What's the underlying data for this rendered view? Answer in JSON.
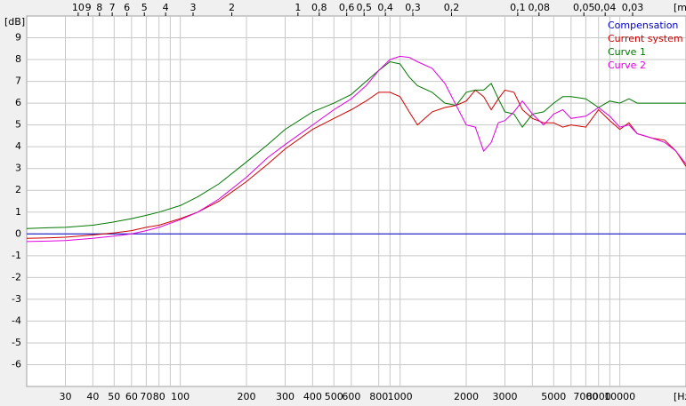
{
  "chart_data": {
    "type": "line",
    "x_label": "[Hz",
    "y_label": "[dB]",
    "x2_label": "[m",
    "x_scale": "log",
    "grid": true,
    "legend": "top-right",
    "xlim": [
      20,
      20000
    ],
    "ylim": [
      -7,
      10
    ],
    "xticks": [
      30,
      40,
      50,
      60,
      70,
      80,
      100,
      200,
      300,
      400,
      500,
      600,
      800,
      1000,
      2000,
      3000,
      5000,
      7000,
      8000,
      10000
    ],
    "xminor": [
      90,
      900,
      4000,
      6000,
      9000
    ],
    "yticks": [
      -6,
      -5,
      -4,
      -3,
      -2,
      -1,
      0,
      1,
      2,
      3,
      4,
      5,
      6,
      7,
      8,
      9
    ],
    "x2ticks": [
      10,
      9,
      8,
      7,
      6,
      5,
      4,
      3,
      2,
      1,
      {
        "value": 0.8,
        "label": "0,8"
      },
      {
        "value": 0.6,
        "label": "0,6"
      },
      {
        "value": 0.5,
        "label": "0,5"
      },
      {
        "value": 0.4,
        "label": "0,4"
      },
      {
        "value": 0.3,
        "label": "0,3"
      },
      {
        "value": 0.2,
        "label": "0,2"
      },
      {
        "value": 0.1,
        "label": "0,1"
      },
      {
        "value": 0.08,
        "label": "0,08"
      },
      {
        "value": 0.05,
        "label": "0,05"
      },
      {
        "value": 0.04,
        "label": "0,04"
      },
      {
        "value": 0.03,
        "label": "0,03"
      }
    ],
    "x": [
      20,
      25,
      30,
      40,
      50,
      60,
      70,
      80,
      100,
      120,
      150,
      200,
      250,
      300,
      400,
      500,
      600,
      700,
      800,
      900,
      1000,
      1100,
      1200,
      1400,
      1600,
      1800,
      2000,
      2200,
      2400,
      2600,
      2800,
      3000,
      3300,
      3600,
      4000,
      4500,
      5000,
      5500,
      6000,
      7000,
      8000,
      9000,
      10000,
      11000,
      12000,
      14000,
      16000,
      18000,
      20000
    ],
    "series": [
      {
        "name": "Compensation",
        "color": "#0000c8",
        "values": [
          0,
          0,
          0,
          0,
          0,
          0,
          0,
          0,
          0,
          0,
          0,
          0,
          0,
          0,
          0,
          0,
          0,
          0,
          0,
          0,
          0,
          0,
          0,
          0,
          0,
          0,
          0,
          0,
          0,
          0,
          0,
          0,
          0,
          0,
          0,
          0,
          0,
          0,
          0,
          0,
          0,
          0,
          0,
          0,
          0,
          0,
          0,
          0,
          0
        ]
      },
      {
        "name": "Current system",
        "color": "#d00000",
        "values": [
          -0.2,
          -0.18,
          -0.15,
          -0.05,
          0.05,
          0.15,
          0.3,
          0.4,
          0.7,
          1.0,
          1.5,
          2.4,
          3.2,
          3.9,
          4.8,
          5.3,
          5.7,
          6.1,
          6.5,
          6.5,
          6.3,
          5.6,
          5.0,
          5.6,
          5.8,
          5.9,
          6.1,
          6.6,
          6.3,
          5.7,
          6.2,
          6.6,
          6.5,
          5.7,
          5.3,
          5.1,
          5.1,
          4.9,
          5.0,
          4.9,
          5.7,
          5.2,
          4.8,
          5.1,
          4.6,
          4.4,
          4.3,
          3.8,
          3.1
        ]
      },
      {
        "name": "Curve 1",
        "color": "#007800",
        "values": [
          0.25,
          0.28,
          0.3,
          0.4,
          0.55,
          0.7,
          0.85,
          1.0,
          1.3,
          1.7,
          2.3,
          3.3,
          4.1,
          4.8,
          5.6,
          6.0,
          6.4,
          7.0,
          7.5,
          7.9,
          7.8,
          7.2,
          6.8,
          6.5,
          6.0,
          5.9,
          6.5,
          6.6,
          6.6,
          6.9,
          6.2,
          5.6,
          5.5,
          4.9,
          5.5,
          5.6,
          6.0,
          6.3,
          6.3,
          6.2,
          5.8,
          6.1,
          6.0,
          6.2,
          6.0,
          6.0,
          6.0,
          6.0,
          6.0
        ]
      },
      {
        "name": "Curve 2",
        "color": "#e000e0",
        "values": [
          -0.35,
          -0.33,
          -0.3,
          -0.2,
          -0.1,
          0.0,
          0.15,
          0.3,
          0.65,
          1.0,
          1.6,
          2.6,
          3.5,
          4.1,
          5.0,
          5.7,
          6.2,
          6.8,
          7.5,
          8.0,
          8.15,
          8.1,
          7.9,
          7.6,
          6.9,
          5.9,
          5.0,
          4.9,
          3.8,
          4.2,
          5.1,
          5.2,
          5.6,
          6.1,
          5.5,
          5.0,
          5.5,
          5.7,
          5.3,
          5.4,
          5.8,
          5.4,
          4.9,
          5.0,
          4.6,
          4.4,
          4.2,
          3.8,
          3.2
        ]
      }
    ]
  }
}
